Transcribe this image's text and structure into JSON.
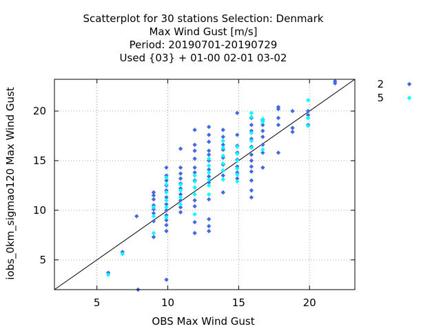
{
  "chart_data": {
    "type": "scatter",
    "title": [
      "Scatterplot for   30 stations Selection: Denmark",
      "Max Wind Gust [m/s]",
      "Period: 20190701-20190729",
      "Used {03} + 01-00 02-01 03-02"
    ],
    "xlabel": "OBS Max Wind Gust",
    "ylabel": "iobs_0km_sigmao120 Max Wind Gust",
    "xlim": [
      2,
      23.2
    ],
    "ylim": [
      2,
      23.2
    ],
    "xticks": [
      5,
      10,
      15,
      20
    ],
    "yticks": [
      5,
      10,
      15,
      20
    ],
    "grid": true,
    "diagonal_line": true,
    "legend_position": "outside-right",
    "series": [
      {
        "name": "2",
        "color": "#4169e1",
        "marker": "diamond",
        "points": [
          [
            5.8,
            3.7
          ],
          [
            6.8,
            5.8
          ],
          [
            7.9,
            2.0
          ],
          [
            7.8,
            9.4
          ],
          [
            9.0,
            7.3
          ],
          [
            9.0,
            8.9
          ],
          [
            9.0,
            9.7
          ],
          [
            9.0,
            10.1
          ],
          [
            9.0,
            10.5
          ],
          [
            9.0,
            11.1
          ],
          [
            9.0,
            11.5
          ],
          [
            9.0,
            11.8
          ],
          [
            9.9,
            3.0
          ],
          [
            9.9,
            7.9
          ],
          [
            9.9,
            8.5
          ],
          [
            9.9,
            9.0
          ],
          [
            9.9,
            9.5
          ],
          [
            9.9,
            10.0
          ],
          [
            9.9,
            10.6
          ],
          [
            9.9,
            11.3
          ],
          [
            9.9,
            12.0
          ],
          [
            9.9,
            12.5
          ],
          [
            9.9,
            13.0
          ],
          [
            9.9,
            13.5
          ],
          [
            9.9,
            14.3
          ],
          [
            10.9,
            9.8
          ],
          [
            10.9,
            10.3
          ],
          [
            10.9,
            11.0
          ],
          [
            10.9,
            11.6
          ],
          [
            10.9,
            12.2
          ],
          [
            10.9,
            12.7
          ],
          [
            10.9,
            13.2
          ],
          [
            10.9,
            13.7
          ],
          [
            10.9,
            14.3
          ],
          [
            10.9,
            16.2
          ],
          [
            11.9,
            7.7
          ],
          [
            11.9,
            8.8
          ],
          [
            11.9,
            10.4
          ],
          [
            11.9,
            11.0
          ],
          [
            11.9,
            12.3
          ],
          [
            11.9,
            13.0
          ],
          [
            11.9,
            13.8
          ],
          [
            11.9,
            14.3
          ],
          [
            11.9,
            15.2
          ],
          [
            11.9,
            16.0
          ],
          [
            11.9,
            16.6
          ],
          [
            11.9,
            18.1
          ],
          [
            12.9,
            7.9
          ],
          [
            12.9,
            8.4
          ],
          [
            12.9,
            9.1
          ],
          [
            12.9,
            11.1
          ],
          [
            12.9,
            12.8
          ],
          [
            12.9,
            13.4
          ],
          [
            12.9,
            14.1
          ],
          [
            12.9,
            15.0
          ],
          [
            12.9,
            15.6
          ],
          [
            12.9,
            16.0
          ],
          [
            12.9,
            16.9
          ],
          [
            12.9,
            17.6
          ],
          [
            12.9,
            18.4
          ],
          [
            13.9,
            11.8
          ],
          [
            13.9,
            13.5
          ],
          [
            13.9,
            14.0
          ],
          [
            13.9,
            14.6
          ],
          [
            13.9,
            15.3
          ],
          [
            13.9,
            16.1
          ],
          [
            13.9,
            16.6
          ],
          [
            13.9,
            17.4
          ],
          [
            13.9,
            18.1
          ],
          [
            14.9,
            13.2
          ],
          [
            14.9,
            13.8
          ],
          [
            14.9,
            14.4
          ],
          [
            14.9,
            15.1
          ],
          [
            14.9,
            15.8
          ],
          [
            14.9,
            16.5
          ],
          [
            14.9,
            17.6
          ],
          [
            14.9,
            19.8
          ],
          [
            15.9,
            11.3
          ],
          [
            15.9,
            12.0
          ],
          [
            15.9,
            13.0
          ],
          [
            15.9,
            13.9
          ],
          [
            15.9,
            14.4
          ],
          [
            15.9,
            15.0
          ],
          [
            15.9,
            15.6
          ],
          [
            15.9,
            16.4
          ],
          [
            15.9,
            17.2
          ],
          [
            15.9,
            18.0
          ],
          [
            15.9,
            18.6
          ],
          [
            15.9,
            19.3
          ],
          [
            16.7,
            14.3
          ],
          [
            16.7,
            15.8
          ],
          [
            16.7,
            16.6
          ],
          [
            16.7,
            17.4
          ],
          [
            16.7,
            18.0
          ],
          [
            16.7,
            18.6
          ],
          [
            16.7,
            19.1
          ],
          [
            17.8,
            15.8
          ],
          [
            17.8,
            18.6
          ],
          [
            17.8,
            19.3
          ],
          [
            17.8,
            20.2
          ],
          [
            17.8,
            20.4
          ],
          [
            18.8,
            17.9
          ],
          [
            18.8,
            18.3
          ],
          [
            18.8,
            20.0
          ],
          [
            19.9,
            18.6
          ],
          [
            19.9,
            19.3
          ],
          [
            19.9,
            19.6
          ],
          [
            19.9,
            20.0
          ],
          [
            21.8,
            22.8
          ],
          [
            21.8,
            23.0
          ]
        ]
      },
      {
        "name": "5",
        "color": "#00ffff",
        "marker": "diamond",
        "points": [
          [
            5.8,
            3.5
          ],
          [
            6.8,
            5.6
          ],
          [
            9.0,
            7.7
          ],
          [
            9.0,
            9.4
          ],
          [
            9.0,
            10.3
          ],
          [
            9.9,
            9.3
          ],
          [
            9.9,
            10.3
          ],
          [
            9.9,
            11.0
          ],
          [
            9.9,
            11.8
          ],
          [
            9.9,
            12.6
          ],
          [
            9.9,
            13.3
          ],
          [
            10.9,
            10.6
          ],
          [
            10.9,
            11.3
          ],
          [
            10.9,
            12.0
          ],
          [
            10.9,
            12.6
          ],
          [
            11.9,
            9.6
          ],
          [
            11.9,
            11.6
          ],
          [
            11.9,
            12.3
          ],
          [
            11.9,
            12.9
          ],
          [
            11.9,
            13.5
          ],
          [
            12.9,
            11.6
          ],
          [
            12.9,
            12.5
          ],
          [
            12.9,
            13.1
          ],
          [
            12.9,
            13.8
          ],
          [
            12.9,
            14.5
          ],
          [
            12.9,
            15.2
          ],
          [
            13.9,
            13.1
          ],
          [
            13.9,
            14.0
          ],
          [
            13.9,
            14.7
          ],
          [
            13.9,
            15.5
          ],
          [
            13.9,
            16.3
          ],
          [
            13.9,
            17.0
          ],
          [
            14.9,
            12.9
          ],
          [
            14.9,
            13.6
          ],
          [
            14.9,
            14.2
          ],
          [
            14.9,
            15.0
          ],
          [
            14.9,
            15.7
          ],
          [
            14.9,
            16.4
          ],
          [
            15.9,
            16.3
          ],
          [
            15.9,
            17.0
          ],
          [
            15.9,
            17.8
          ],
          [
            15.9,
            19.4
          ],
          [
            15.9,
            19.8
          ],
          [
            16.7,
            16.1
          ],
          [
            16.7,
            18.9
          ],
          [
            16.7,
            19.2
          ],
          [
            19.9,
            18.5
          ],
          [
            19.9,
            19.3
          ],
          [
            19.9,
            21.1
          ]
        ]
      }
    ]
  }
}
